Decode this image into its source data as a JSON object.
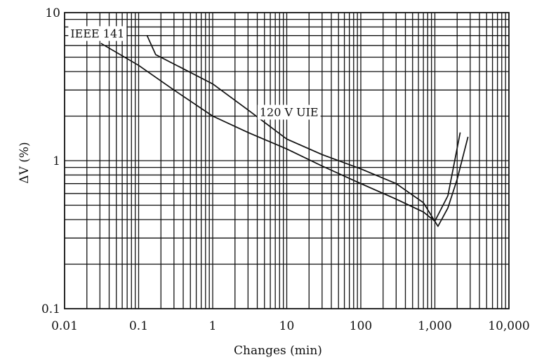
{
  "chart_data": {
    "type": "line",
    "xscale": "log",
    "yscale": "log",
    "xlabel": "Changes (min)",
    "ylabel": "ΔV (%)",
    "xlim": [
      0.01,
      10000
    ],
    "ylim": [
      0.1,
      10
    ],
    "grid": true,
    "x_tick_labels": [
      "0.01",
      "0.1",
      "1",
      "10",
      "100",
      "1,000",
      "10,000"
    ],
    "y_tick_labels": [
      "0.1",
      "1",
      "10"
    ],
    "series": [
      {
        "name": "IEEE 141",
        "x": [
          0.031,
          0.1,
          0.3,
          1,
          3,
          10,
          30,
          100,
          300,
          700,
          1000,
          1500,
          2200
        ],
        "y": [
          6.2,
          4.4,
          3.0,
          2.0,
          1.55,
          1.2,
          0.92,
          0.7,
          0.55,
          0.45,
          0.39,
          0.58,
          1.55
        ]
      },
      {
        "name": "120 V UIE",
        "x": [
          0.13,
          0.17,
          0.3,
          1,
          3,
          10,
          30,
          100,
          300,
          700,
          1100,
          1500,
          2000,
          2800
        ],
        "y": [
          7.0,
          5.2,
          4.5,
          3.3,
          2.2,
          1.4,
          1.1,
          0.88,
          0.7,
          0.52,
          0.36,
          0.48,
          0.75,
          1.45
        ]
      }
    ]
  }
}
